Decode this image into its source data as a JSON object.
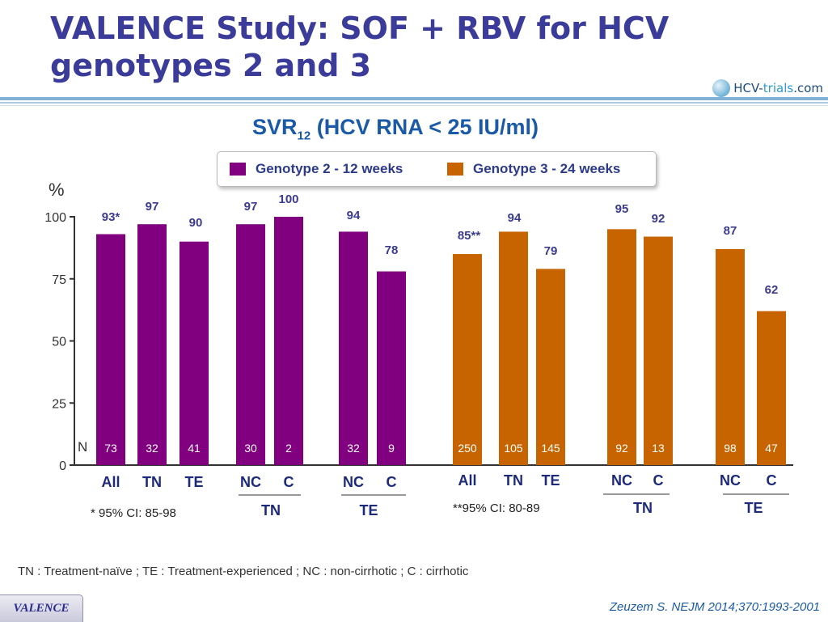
{
  "header": {
    "title": "VALENCE Study: SOF + RBV for HCV genotypes 2 and 3",
    "brand": {
      "prefix": "HCV-",
      "highlight": "trials",
      "suffix": ".com"
    }
  },
  "colors": {
    "genotype2": "#800080",
    "genotype3": "#c86400",
    "rule": "#7fb2d6",
    "axis": "#333333"
  },
  "chart_data": {
    "type": "bar",
    "title": "SVR12 (HCV RNA < 25 IU/ml)",
    "title_main": "SVR",
    "title_sub": "12",
    "title_rest": " (HCV RNA < 25 IU/ml)",
    "ylabel": "%",
    "n_prefix": "N",
    "ylim": [
      0,
      100
    ],
    "yticks": [
      0,
      25,
      50,
      75,
      100
    ],
    "legend": [
      {
        "name": "Genotype 2 - 12 weeks",
        "color": "#800080"
      },
      {
        "name": "Genotype 3 - 24 weeks",
        "color": "#c86400"
      }
    ],
    "bars": [
      {
        "series": 0,
        "category": "All",
        "value": 93,
        "label": "93*",
        "n": "73"
      },
      {
        "series": 0,
        "category": "TN",
        "value": 97,
        "label": "97",
        "n": "32"
      },
      {
        "series": 0,
        "category": "TE",
        "value": 90,
        "label": "90",
        "n": "41"
      },
      {
        "series": 0,
        "category": "NC",
        "value": 97,
        "label": "97",
        "n": "30",
        "group": "TN"
      },
      {
        "series": 0,
        "category": "C",
        "value": 100,
        "label": "100",
        "n": "2",
        "group": "TN"
      },
      {
        "series": 0,
        "category": "NC",
        "value": 94,
        "label": "94",
        "n": "32",
        "group": "TE"
      },
      {
        "series": 0,
        "category": "C",
        "value": 78,
        "label": "78",
        "n": "9",
        "group": "TE"
      },
      {
        "series": 1,
        "category": "All",
        "value": 85,
        "label": "85**",
        "n": "250"
      },
      {
        "series": 1,
        "category": "TN",
        "value": 94,
        "label": "94",
        "n": "105"
      },
      {
        "series": 1,
        "category": "TE",
        "value": 79,
        "label": "79",
        "n": "145"
      },
      {
        "series": 1,
        "category": "NC",
        "value": 95,
        "label": "95",
        "n": "92",
        "group": "TN"
      },
      {
        "series": 1,
        "category": "C",
        "value": 92,
        "label": "92",
        "n": "13",
        "group": "TN"
      },
      {
        "series": 1,
        "category": "NC",
        "value": 87,
        "label": "87",
        "n": "98",
        "group": "TE"
      },
      {
        "series": 1,
        "category": "C",
        "value": 62,
        "label": "62",
        "n": "47",
        "group": "TE"
      }
    ],
    "groups": [
      "TN",
      "TE",
      "TN",
      "TE"
    ]
  },
  "footnotes": {
    "genotype2_ci": "* 95% CI: 85-98",
    "genotype3_ci": "**95% CI: 80-89"
  },
  "abbreviations": "TN : Treatment-naïve ; TE : Treatment-experienced ; NC : non-cirrhotic ; C : cirrhotic",
  "citation": "Zeuzem S. NEJM 2014;370:1993-2001",
  "badge": "VALENCE"
}
